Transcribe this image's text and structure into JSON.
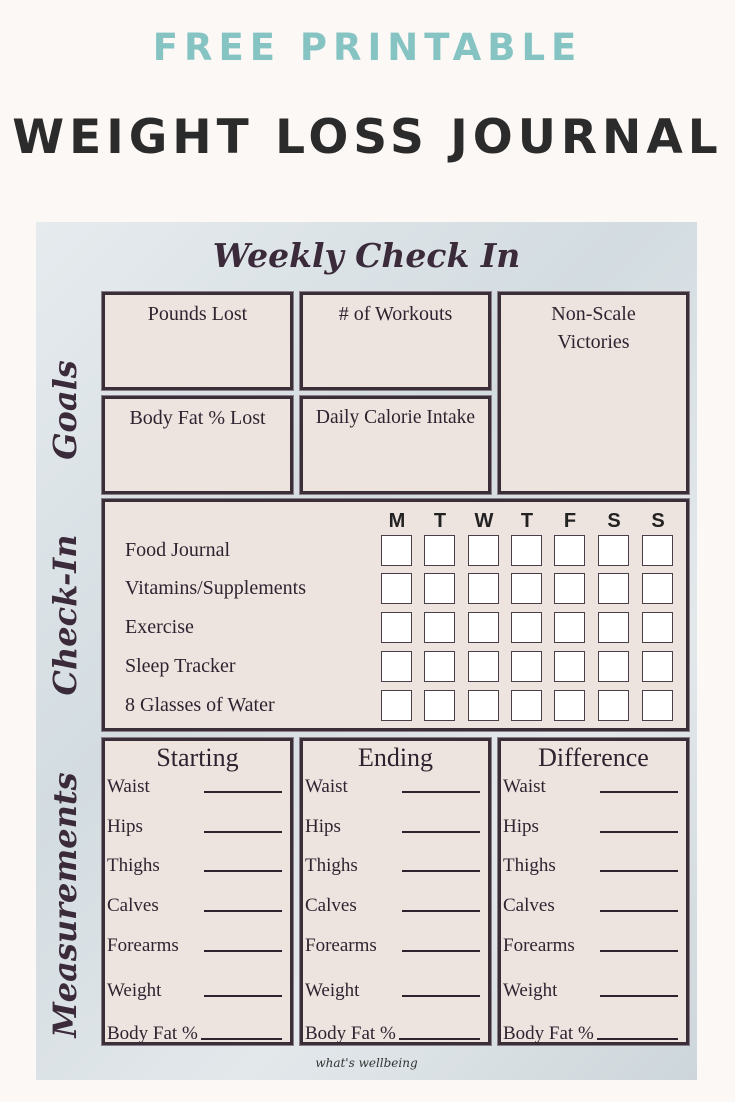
{
  "header": {
    "line1": "FREE PRINTABLE",
    "line2": "WEIGHT LOSS JOURNAL",
    "accent": "#86c3c3"
  },
  "sheet": {
    "title": "Weekly Check In",
    "goals": {
      "label": "Goals",
      "boxes": [
        "Pounds Lost",
        "# of Workouts",
        "Non-Scale Victories",
        "Body Fat % Lost",
        "Daily Calorie Intake"
      ]
    },
    "checkin": {
      "label": "Check-In",
      "days": [
        "M",
        "T",
        "W",
        "T",
        "F",
        "S",
        "S"
      ],
      "items": [
        "Food Journal",
        "Vitamins/Supplements",
        "Exercise",
        "Sleep Tracker",
        "8 Glasses of Water"
      ]
    },
    "measurements": {
      "label": "Measurements",
      "columns": [
        "Starting",
        "Ending",
        "Difference"
      ],
      "rows": [
        "Waist",
        "Hips",
        "Thighs",
        "Calves",
        "Forearms",
        "Weight",
        "Body Fat %"
      ]
    },
    "footer": "what's wellbeing"
  }
}
